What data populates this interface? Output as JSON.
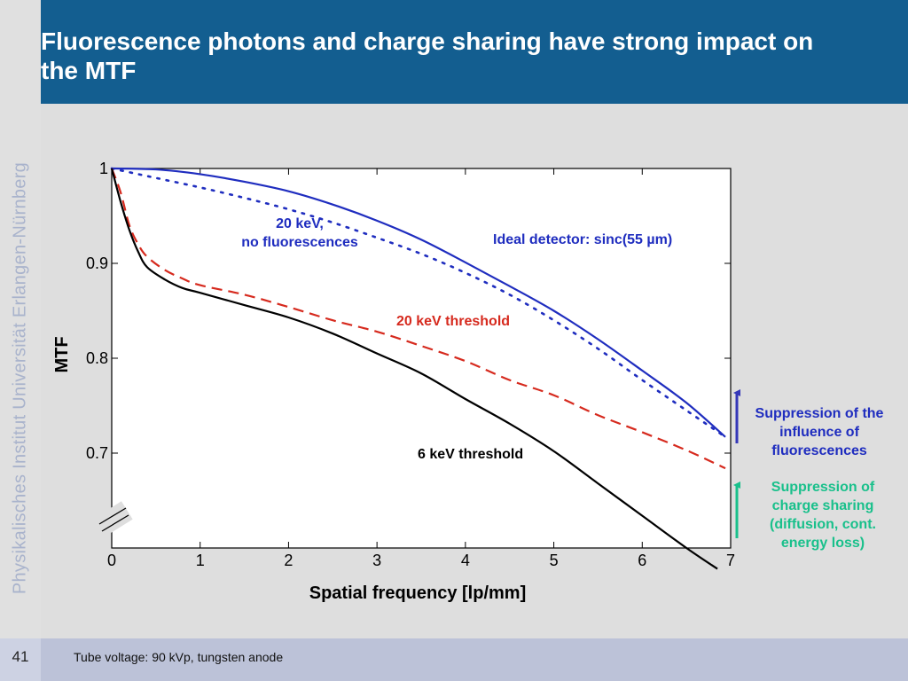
{
  "slide": {
    "title": "Fluorescence photons and charge sharing have strong impact on the MTF",
    "side_label": "Physikalisches Institut     Universität Erlangen-Nürnberg",
    "page_number": "41",
    "footnote": "Tube voltage: 90 kVp, tungsten anode"
  },
  "colors": {
    "header": "#135e90",
    "blue": "#1f2dbf",
    "red": "#d62a1e",
    "black": "#000000",
    "green": "#19c08b",
    "arrow_blue": "#3437b8"
  },
  "annotations": {
    "ideal_detector": "Ideal detector: sinc(55 µm)",
    "kev20_line1": "20 keV,",
    "kev20_line2": "no fluorescences",
    "kev20_threshold": "20 keV threshold",
    "kev6_threshold": "6 keV threshold",
    "suppression_fluorescence": [
      "Suppression of the",
      "influence of",
      "fluorescences"
    ],
    "suppression_charge": [
      "Suppression of",
      "charge sharing",
      "(diffusion, cont.",
      "energy loss)"
    ]
  },
  "chart_data": {
    "type": "line",
    "xlabel": "Spatial frequency [lp/mm]",
    "ylabel": "MTF",
    "xlim": [
      0,
      7
    ],
    "ylim": [
      0.6,
      1.0
    ],
    "xticks": [
      0,
      1,
      2,
      3,
      4,
      5,
      6,
      7
    ],
    "yticks": [
      0.7,
      0.8,
      0.9,
      1
    ],
    "ytick_labels": [
      "0.7",
      "0.8",
      "0.9",
      "1"
    ],
    "axis_break": true,
    "grid": false,
    "series": [
      {
        "name": "Ideal detector: sinc(55 µm)",
        "color": "#1f2dbf",
        "style": "solid",
        "x": [
          0,
          0.5,
          1,
          1.5,
          2,
          2.5,
          3,
          3.5,
          4,
          4.5,
          5,
          5.5,
          6,
          6.5,
          6.94
        ],
        "y": [
          1.0,
          0.999,
          0.994,
          0.986,
          0.976,
          0.962,
          0.945,
          0.925,
          0.901,
          0.876,
          0.85,
          0.82,
          0.787,
          0.753,
          0.717
        ]
      },
      {
        "name": "20 keV, no fluorescences",
        "color": "#1f2dbf",
        "style": "dotted",
        "x": [
          0,
          0.5,
          1,
          1.5,
          2,
          2.5,
          3,
          3.5,
          4,
          4.5,
          5,
          5.5,
          6,
          6.5,
          6.94
        ],
        "y": [
          1.0,
          0.99,
          0.98,
          0.969,
          0.957,
          0.943,
          0.927,
          0.91,
          0.89,
          0.867,
          0.84,
          0.81,
          0.777,
          0.745,
          0.717
        ]
      },
      {
        "name": "20 keV threshold",
        "color": "#d62a1e",
        "style": "dashed",
        "x": [
          0,
          0.1,
          0.2,
          0.3,
          0.4,
          0.6,
          0.8,
          1,
          1.5,
          2,
          2.5,
          3,
          3.5,
          4,
          4.5,
          5,
          5.5,
          6,
          6.5,
          6.94
        ],
        "y": [
          1.0,
          0.975,
          0.94,
          0.92,
          0.907,
          0.893,
          0.884,
          0.877,
          0.867,
          0.854,
          0.84,
          0.828,
          0.813,
          0.797,
          0.777,
          0.761,
          0.74,
          0.722,
          0.703,
          0.684
        ]
      },
      {
        "name": "6 keV threshold",
        "color": "#000000",
        "style": "solid",
        "x": [
          0,
          0.1,
          0.2,
          0.3,
          0.4,
          0.6,
          0.8,
          1,
          1.5,
          2,
          2.5,
          3,
          3.5,
          4,
          4.5,
          5,
          5.5,
          6,
          6.5,
          6.85
        ],
        "y": [
          1.0,
          0.965,
          0.935,
          0.912,
          0.896,
          0.883,
          0.874,
          0.869,
          0.856,
          0.843,
          0.826,
          0.805,
          0.784,
          0.757,
          0.731,
          0.702,
          0.668,
          0.634,
          0.6,
          0.578
        ]
      }
    ]
  }
}
